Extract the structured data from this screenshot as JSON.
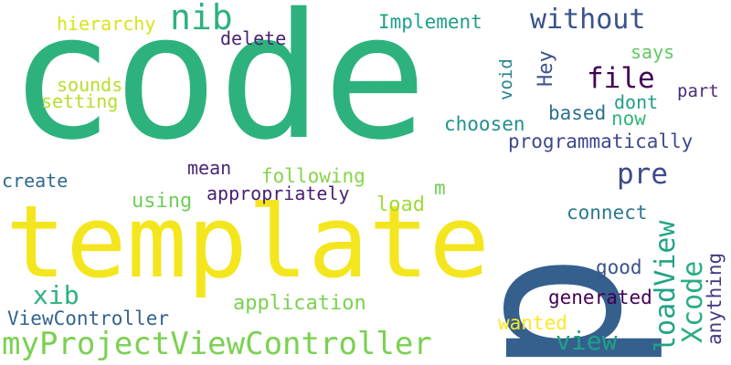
{
  "words": [
    {
      "text": "code",
      "color": "#2db27d"
    },
    {
      "text": "p",
      "color": "#355f8d"
    },
    {
      "text": "template",
      "color": "#f4e61e"
    },
    {
      "text": "myProjectViewController",
      "color": "#7ad151"
    },
    {
      "text": "nib",
      "color": "#2db27d"
    },
    {
      "text": "without",
      "color": "#3b528b"
    },
    {
      "text": "file",
      "color": "#440154"
    },
    {
      "text": "pre",
      "color": "#3e4989"
    },
    {
      "text": "hierarchy",
      "color": "#d8e219"
    },
    {
      "text": "Implement",
      "color": "#1f9e89"
    },
    {
      "text": "delete",
      "color": "#482475"
    },
    {
      "text": "void",
      "color": "#26828e"
    },
    {
      "text": "Hey",
      "color": "#3b528b"
    },
    {
      "text": "says",
      "color": "#5ec962"
    },
    {
      "text": "dont",
      "color": "#1f9e89"
    },
    {
      "text": "part",
      "color": "#472c7a"
    },
    {
      "text": "sounds",
      "color": "#b5de2b"
    },
    {
      "text": "setting",
      "color": "#b5de2b"
    },
    {
      "text": "choosen",
      "color": "#21918c"
    },
    {
      "text": "based",
      "color": "#2c728e"
    },
    {
      "text": "now",
      "color": "#35b779"
    },
    {
      "text": "programmatically",
      "color": "#3e4989"
    },
    {
      "text": "mean",
      "color": "#482878"
    },
    {
      "text": "following",
      "color": "#86d549"
    },
    {
      "text": "create",
      "color": "#31688e"
    },
    {
      "text": "appropriately",
      "color": "#481f70"
    },
    {
      "text": "using",
      "color": "#6ece58"
    },
    {
      "text": "load",
      "color": "#9fda3a"
    },
    {
      "text": "m",
      "color": "#6ece58"
    },
    {
      "text": "connect",
      "color": "#2a788e"
    },
    {
      "text": "loadView",
      "color": "#20a486"
    },
    {
      "text": "Xcode",
      "color": "#28ae80"
    },
    {
      "text": "anything",
      "color": "#453781"
    },
    {
      "text": "good",
      "color": "#3b528b"
    },
    {
      "text": "xib",
      "color": "#2db27d"
    },
    {
      "text": "application",
      "color": "#7ad151"
    },
    {
      "text": "generated",
      "color": "#440154"
    },
    {
      "text": "ViewController",
      "color": "#33638d"
    },
    {
      "text": "wanted",
      "color": "#fde725"
    },
    {
      "text": "view",
      "color": "#1fa188"
    }
  ]
}
